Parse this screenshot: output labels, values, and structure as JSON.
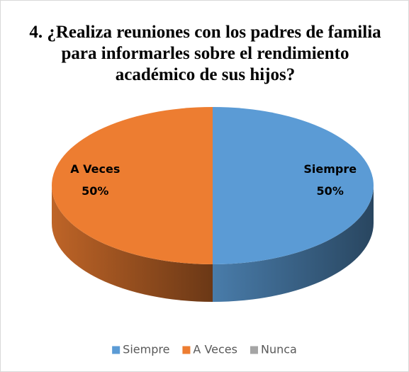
{
  "chart_data": {
    "type": "pie",
    "title": "4. ¿Realiza reuniones con los padres de familia para informarles sobre el rendimiento académico de sus hijos?",
    "categories": [
      "Siempre",
      "A Veces",
      "Nunca"
    ],
    "values": [
      50,
      50,
      0
    ],
    "value_labels": [
      "50%",
      "50%",
      null
    ],
    "colors": [
      "#5b9bd5",
      "#ed7d31",
      "#a5a5a5"
    ],
    "legend": "bottom"
  }
}
